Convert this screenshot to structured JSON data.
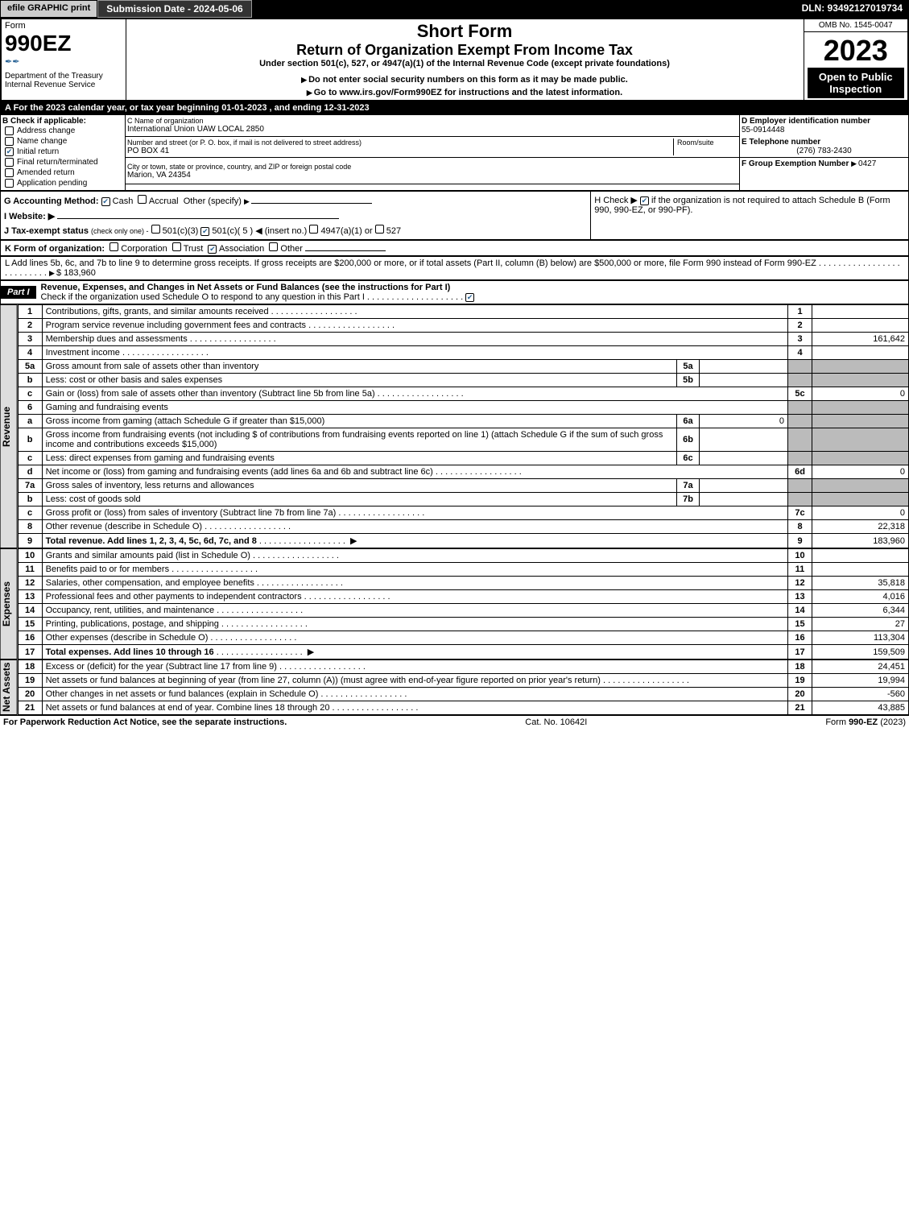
{
  "topbar": {
    "efile": "efile GRAPHIC print",
    "submission": "Submission Date - 2024-05-06",
    "dln": "DLN: 93492127019734"
  },
  "header": {
    "form_word": "Form",
    "form_number": "990EZ",
    "dept": "Department of the Treasury",
    "irs": "Internal Revenue Service",
    "short_form": "Short Form",
    "return_title": "Return of Organization Exempt From Income Tax",
    "section501": "Under section 501(c), 527, or 4947(a)(1) of the Internal Revenue Code (except private foundations)",
    "ssn_note": "Do not enter social security numbers on this form as it may be made public.",
    "goto": "Go to www.irs.gov/Form990EZ for instructions and the latest information.",
    "omb": "OMB No. 1545-0047",
    "year": "2023",
    "open": "Open to Public Inspection"
  },
  "lineA": "A  For the 2023 calendar year, or tax year beginning 01-01-2023 , and ending 12-31-2023",
  "boxB": {
    "title": "B  Check if applicable:",
    "address_change": "Address change",
    "name_change": "Name change",
    "initial_return": "Initial return",
    "final_return": "Final return/terminated",
    "amended": "Amended return",
    "pending": "Application pending",
    "checked_initial": true
  },
  "boxC": {
    "label_name": "C Name of organization",
    "name": "International Union UAW LOCAL 2850",
    "label_street": "Number and street (or P. O. box, if mail is not delivered to street address)",
    "room_label": "Room/suite",
    "street": "PO BOX 41",
    "label_city": "City or town, state or province, country, and ZIP or foreign postal code",
    "city": "Marion, VA  24354"
  },
  "boxD": {
    "label": "D Employer identification number",
    "value": "55-0914448"
  },
  "boxE": {
    "label": "E Telephone number",
    "value": "(276) 783-2430"
  },
  "boxF": {
    "label": "F Group Exemption Number",
    "value": "0427"
  },
  "lineG": {
    "label": "G Accounting Method:",
    "cash": "Cash",
    "accrual": "Accrual",
    "other": "Other (specify)",
    "cash_checked": true
  },
  "lineH": {
    "text": "H  Check ▶",
    "note": "if the organization is not required to attach Schedule B (Form 990, 990-EZ, or 990-PF).",
    "checked": true
  },
  "lineI": {
    "label": "I Website: ▶",
    "value": ""
  },
  "lineJ": {
    "label": "J Tax-exempt status",
    "sub": "(check only one) -",
    "opt1": "501(c)(3)",
    "opt2": "501(c)( 5 ) ◀ (insert no.)",
    "opt3": "4947(a)(1) or",
    "opt4": "527",
    "opt2_checked": true
  },
  "lineK": {
    "label": "K Form of organization:",
    "corp": "Corporation",
    "trust": "Trust",
    "assoc": "Association",
    "other": "Other",
    "assoc_checked": true
  },
  "lineL": {
    "text": "L Add lines 5b, 6c, and 7b to line 9 to determine gross receipts. If gross receipts are $200,000 or more, or if total assets (Part II, column (B) below) are $500,000 or more, file Form 990 instead of Form 990-EZ",
    "value": "$ 183,960"
  },
  "partI": {
    "label": "Part I",
    "title": "Revenue, Expenses, and Changes in Net Assets or Fund Balances (see the instructions for Part I)",
    "check_note": "Check if the organization used Schedule O to respond to any question in this Part I",
    "checked": true
  },
  "revenue_label": "Revenue",
  "expenses_label": "Expenses",
  "netassets_label": "Net Assets",
  "lines": [
    {
      "n": "1",
      "desc": "Contributions, gifts, grants, and similar amounts received",
      "col": "1",
      "val": ""
    },
    {
      "n": "2",
      "desc": "Program service revenue including government fees and contracts",
      "col": "2",
      "val": ""
    },
    {
      "n": "3",
      "desc": "Membership dues and assessments",
      "col": "3",
      "val": "161,642"
    },
    {
      "n": "4",
      "desc": "Investment income",
      "col": "4",
      "val": ""
    },
    {
      "n": "5a",
      "desc": "Gross amount from sale of assets other than inventory",
      "sub": "5a",
      "subval": ""
    },
    {
      "n": "b",
      "desc": "Less: cost or other basis and sales expenses",
      "sub": "5b",
      "subval": ""
    },
    {
      "n": "c",
      "desc": "Gain or (loss) from sale of assets other than inventory (Subtract line 5b from line 5a)",
      "col": "5c",
      "val": "0"
    },
    {
      "n": "6",
      "desc": "Gaming and fundraising events"
    },
    {
      "n": "a",
      "desc": "Gross income from gaming (attach Schedule G if greater than $15,000)",
      "sub": "6a",
      "subval": "0"
    },
    {
      "n": "b",
      "desc": "Gross income from fundraising events (not including $                    of contributions from fundraising events reported on line 1) (attach Schedule G if the sum of such gross income and contributions exceeds $15,000)",
      "sub": "6b",
      "subval": ""
    },
    {
      "n": "c",
      "desc": "Less: direct expenses from gaming and fundraising events",
      "sub": "6c",
      "subval": ""
    },
    {
      "n": "d",
      "desc": "Net income or (loss) from gaming and fundraising events (add lines 6a and 6b and subtract line 6c)",
      "col": "6d",
      "val": "0"
    },
    {
      "n": "7a",
      "desc": "Gross sales of inventory, less returns and allowances",
      "sub": "7a",
      "subval": ""
    },
    {
      "n": "b",
      "desc": "Less: cost of goods sold",
      "sub": "7b",
      "subval": ""
    },
    {
      "n": "c",
      "desc": "Gross profit or (loss) from sales of inventory (Subtract line 7b from line 7a)",
      "col": "7c",
      "val": "0"
    },
    {
      "n": "8",
      "desc": "Other revenue (describe in Schedule O)",
      "col": "8",
      "val": "22,318"
    },
    {
      "n": "9",
      "desc": "Total revenue. Add lines 1, 2, 3, 4, 5c, 6d, 7c, and 8",
      "col": "9",
      "val": "183,960",
      "bold": true
    }
  ],
  "expense_lines": [
    {
      "n": "10",
      "desc": "Grants and similar amounts paid (list in Schedule O)",
      "col": "10",
      "val": ""
    },
    {
      "n": "11",
      "desc": "Benefits paid to or for members",
      "col": "11",
      "val": ""
    },
    {
      "n": "12",
      "desc": "Salaries, other compensation, and employee benefits",
      "col": "12",
      "val": "35,818"
    },
    {
      "n": "13",
      "desc": "Professional fees and other payments to independent contractors",
      "col": "13",
      "val": "4,016"
    },
    {
      "n": "14",
      "desc": "Occupancy, rent, utilities, and maintenance",
      "col": "14",
      "val": "6,344"
    },
    {
      "n": "15",
      "desc": "Printing, publications, postage, and shipping",
      "col": "15",
      "val": "27"
    },
    {
      "n": "16",
      "desc": "Other expenses (describe in Schedule O)",
      "col": "16",
      "val": "113,304"
    },
    {
      "n": "17",
      "desc": "Total expenses. Add lines 10 through 16",
      "col": "17",
      "val": "159,509",
      "bold": true
    }
  ],
  "net_lines": [
    {
      "n": "18",
      "desc": "Excess or (deficit) for the year (Subtract line 17 from line 9)",
      "col": "18",
      "val": "24,451"
    },
    {
      "n": "19",
      "desc": "Net assets or fund balances at beginning of year (from line 27, column (A)) (must agree with end-of-year figure reported on prior year's return)",
      "col": "19",
      "val": "19,994"
    },
    {
      "n": "20",
      "desc": "Other changes in net assets or fund balances (explain in Schedule O)",
      "col": "20",
      "val": "-560"
    },
    {
      "n": "21",
      "desc": "Net assets or fund balances at end of year. Combine lines 18 through 20",
      "col": "21",
      "val": "43,885"
    }
  ],
  "footer": {
    "left": "For Paperwork Reduction Act Notice, see the separate instructions.",
    "mid": "Cat. No. 10642I",
    "right": "Form 990-EZ (2023)"
  }
}
